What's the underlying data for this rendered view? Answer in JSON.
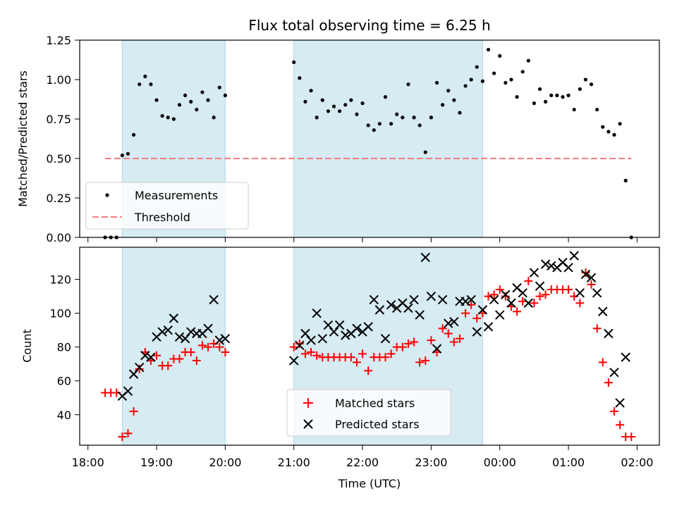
{
  "chart_data": [
    {
      "type": "scatter",
      "title": "Flux total observing time = 6.25 h",
      "xlabel": "",
      "ylabel": "Matched/Predicted stars",
      "ylim": [
        0,
        1.25
      ],
      "yticks": [
        "0.00",
        "0.25",
        "0.50",
        "0.75",
        "1.00",
        "1.25"
      ],
      "xlim": [
        "18:00",
        "02:00"
      ],
      "shaded_intervals": [
        [
          "18:30",
          "20:00"
        ],
        [
          "21:00",
          "23:45"
        ]
      ],
      "legend": {
        "placement": "lower-left",
        "entries": [
          "Measurements",
          "Threshold"
        ]
      },
      "threshold": {
        "name": "Threshold",
        "value": 0.5,
        "x_range": [
          "18:15",
          "01:55"
        ],
        "color": "#f08080"
      },
      "series": [
        {
          "name": "Measurements",
          "color": "#000000",
          "points": [
            [
              "18:15",
              0.0
            ],
            [
              "18:20",
              0.0
            ],
            [
              "18:25",
              0.0
            ],
            [
              "18:30",
              0.52
            ],
            [
              "18:35",
              0.53
            ],
            [
              "18:40",
              0.65
            ],
            [
              "18:45",
              0.97
            ],
            [
              "18:50",
              1.02
            ],
            [
              "18:55",
              0.97
            ],
            [
              "19:00",
              0.87
            ],
            [
              "19:05",
              0.77
            ],
            [
              "19:10",
              0.76
            ],
            [
              "19:15",
              0.75
            ],
            [
              "19:20",
              0.84
            ],
            [
              "19:25",
              0.9
            ],
            [
              "19:30",
              0.86
            ],
            [
              "19:35",
              0.81
            ],
            [
              "19:40",
              0.92
            ],
            [
              "19:45",
              0.87
            ],
            [
              "19:50",
              0.76
            ],
            [
              "19:55",
              0.95
            ],
            [
              "20:00",
              0.9
            ],
            [
              "21:00",
              1.11
            ],
            [
              "21:05",
              1.01
            ],
            [
              "21:10",
              0.86
            ],
            [
              "21:15",
              0.93
            ],
            [
              "21:20",
              0.76
            ],
            [
              "21:25",
              0.87
            ],
            [
              "21:30",
              0.8
            ],
            [
              "21:35",
              0.83
            ],
            [
              "21:40",
              0.8
            ],
            [
              "21:45",
              0.84
            ],
            [
              "21:50",
              0.87
            ],
            [
              "21:55",
              0.78
            ],
            [
              "22:00",
              0.85
            ],
            [
              "22:05",
              0.71
            ],
            [
              "22:10",
              0.68
            ],
            [
              "22:15",
              0.72
            ],
            [
              "22:20",
              0.89
            ],
            [
              "22:25",
              0.72
            ],
            [
              "22:30",
              0.78
            ],
            [
              "22:35",
              0.76
            ],
            [
              "22:40",
              0.97
            ],
            [
              "22:45",
              0.76
            ],
            [
              "22:50",
              0.71
            ],
            [
              "22:55",
              0.54
            ],
            [
              "23:00",
              0.76
            ],
            [
              "23:05",
              0.98
            ],
            [
              "23:10",
              0.84
            ],
            [
              "23:15",
              0.93
            ],
            [
              "23:20",
              0.87
            ],
            [
              "23:25",
              0.79
            ],
            [
              "23:30",
              0.96
            ],
            [
              "23:35",
              1.0
            ],
            [
              "23:40",
              1.08
            ],
            [
              "23:45",
              0.99
            ],
            [
              "23:50",
              1.19
            ],
            [
              "23:55",
              1.04
            ],
            [
              "00:00",
              1.15
            ],
            [
              "00:05",
              0.98
            ],
            [
              "00:10",
              1.0
            ],
            [
              "00:15",
              0.89
            ],
            [
              "00:20",
              1.05
            ],
            [
              "00:25",
              1.12
            ],
            [
              "00:30",
              0.85
            ],
            [
              "00:35",
              0.94
            ],
            [
              "00:40",
              0.86
            ],
            [
              "00:45",
              0.9
            ],
            [
              "00:50",
              0.9
            ],
            [
              "00:55",
              0.89
            ],
            [
              "01:00",
              0.9
            ],
            [
              "01:05",
              0.81
            ],
            [
              "01:10",
              0.94
            ],
            [
              "01:15",
              1.0
            ],
            [
              "01:20",
              0.97
            ],
            [
              "01:25",
              0.81
            ],
            [
              "01:30",
              0.7
            ],
            [
              "01:35",
              0.67
            ],
            [
              "01:40",
              0.65
            ],
            [
              "01:45",
              0.72
            ],
            [
              "01:50",
              0.36
            ],
            [
              "01:55",
              0.0
            ]
          ]
        }
      ]
    },
    {
      "type": "scatter",
      "title": "",
      "xlabel": "Time (UTC)",
      "ylabel": "Count",
      "ylim": [
        22,
        139
      ],
      "yticks": [
        "40",
        "60",
        "80",
        "100",
        "120"
      ],
      "xticks": [
        "18:00",
        "19:00",
        "20:00",
        "21:00",
        "22:00",
        "23:00",
        "00:00",
        "01:00",
        "02:00"
      ],
      "xlim": [
        "18:00",
        "02:00"
      ],
      "shaded_intervals": [
        [
          "18:30",
          "20:00"
        ],
        [
          "21:00",
          "23:45"
        ]
      ],
      "legend": {
        "placement": "lower-center",
        "entries": [
          "Matched stars",
          "Predicted stars"
        ]
      },
      "series": [
        {
          "name": "Matched stars",
          "color": "#ff0000",
          "marker": "plus",
          "points": [
            [
              "18:15",
              53
            ],
            [
              "18:20",
              53
            ],
            [
              "18:25",
              53
            ],
            [
              "18:30",
              27
            ],
            [
              "18:35",
              29
            ],
            [
              "18:40",
              42
            ],
            [
              "18:45",
              67
            ],
            [
              "18:50",
              77
            ],
            [
              "18:55",
              72
            ],
            [
              "19:00",
              75
            ],
            [
              "19:05",
              69
            ],
            [
              "19:10",
              69
            ],
            [
              "19:15",
              73
            ],
            [
              "19:20",
              73
            ],
            [
              "19:25",
              77
            ],
            [
              "19:30",
              77
            ],
            [
              "19:35",
              72
            ],
            [
              "19:40",
              81
            ],
            [
              "19:45",
              80
            ],
            [
              "19:50",
              82
            ],
            [
              "19:55",
              80
            ],
            [
              "20:00",
              77
            ],
            [
              "21:00",
              80
            ],
            [
              "21:05",
              82
            ],
            [
              "21:10",
              76
            ],
            [
              "21:15",
              77
            ],
            [
              "21:20",
              75
            ],
            [
              "21:25",
              74
            ],
            [
              "21:30",
              74
            ],
            [
              "21:35",
              74
            ],
            [
              "21:40",
              74
            ],
            [
              "21:45",
              74
            ],
            [
              "21:50",
              74
            ],
            [
              "21:55",
              71
            ],
            [
              "22:00",
              76
            ],
            [
              "22:05",
              66
            ],
            [
              "22:10",
              74
            ],
            [
              "22:15",
              74
            ],
            [
              "22:20",
              74
            ],
            [
              "22:25",
              76
            ],
            [
              "22:30",
              80
            ],
            [
              "22:35",
              80
            ],
            [
              "22:40",
              82
            ],
            [
              "22:45",
              83
            ],
            [
              "22:50",
              71
            ],
            [
              "22:55",
              72
            ],
            [
              "23:00",
              84
            ],
            [
              "23:05",
              77
            ],
            [
              "23:10",
              91
            ],
            [
              "23:15",
              88
            ],
            [
              "23:20",
              83
            ],
            [
              "23:25",
              85
            ],
            [
              "23:30",
              100
            ],
            [
              "23:35",
              105
            ],
            [
              "23:40",
              97
            ],
            [
              "23:45",
              100
            ],
            [
              "23:50",
              110
            ],
            [
              "23:55",
              111
            ],
            [
              "00:00",
              114
            ],
            [
              "00:05",
              110
            ],
            [
              "00:10",
              104
            ],
            [
              "00:15",
              101
            ],
            [
              "00:20",
              107
            ],
            [
              "00:25",
              119
            ],
            [
              "00:30",
              106
            ],
            [
              "00:35",
              110
            ],
            [
              "00:40",
              111
            ],
            [
              "00:45",
              114
            ],
            [
              "00:50",
              114
            ],
            [
              "00:55",
              114
            ],
            [
              "01:00",
              114
            ],
            [
              "01:05",
              110
            ],
            [
              "01:10",
              106
            ],
            [
              "01:15",
              124
            ],
            [
              "01:20",
              117
            ],
            [
              "01:25",
              91
            ],
            [
              "01:30",
              71
            ],
            [
              "01:35",
              59
            ],
            [
              "01:40",
              42
            ],
            [
              "01:45",
              34
            ],
            [
              "01:50",
              27
            ],
            [
              "01:55",
              27
            ]
          ]
        },
        {
          "name": "Predicted stars",
          "color": "#000000",
          "marker": "x",
          "points": [
            [
              "18:30",
              51
            ],
            [
              "18:35",
              54
            ],
            [
              "18:40",
              64
            ],
            [
              "18:45",
              68
            ],
            [
              "18:50",
              75
            ],
            [
              "18:55",
              74
            ],
            [
              "19:00",
              86
            ],
            [
              "19:05",
              89
            ],
            [
              "19:10",
              90
            ],
            [
              "19:15",
              97
            ],
            [
              "19:20",
              86
            ],
            [
              "19:25",
              85
            ],
            [
              "19:30",
              89
            ],
            [
              "19:35",
              88
            ],
            [
              "19:40",
              88
            ],
            [
              "19:45",
              91
            ],
            [
              "19:50",
              108
            ],
            [
              "19:55",
              84
            ],
            [
              "20:00",
              85
            ],
            [
              "21:00",
              72
            ],
            [
              "21:05",
              81
            ],
            [
              "21:10",
              88
            ],
            [
              "21:15",
              84
            ],
            [
              "21:20",
              100
            ],
            [
              "21:25",
              85
            ],
            [
              "21:30",
              93
            ],
            [
              "21:35",
              89
            ],
            [
              "21:40",
              93
            ],
            [
              "21:45",
              87
            ],
            [
              "21:50",
              88
            ],
            [
              "21:55",
              91
            ],
            [
              "22:00",
              89
            ],
            [
              "22:05",
              92
            ],
            [
              "22:10",
              108
            ],
            [
              "22:15",
              102
            ],
            [
              "22:20",
              85
            ],
            [
              "22:25",
              105
            ],
            [
              "22:30",
              103
            ],
            [
              "22:35",
              106
            ],
            [
              "22:40",
              103
            ],
            [
              "22:45",
              108
            ],
            [
              "22:50",
              99
            ],
            [
              "22:55",
              133
            ],
            [
              "23:00",
              110
            ],
            [
              "23:05",
              79
            ],
            [
              "23:10",
              108
            ],
            [
              "23:15",
              94
            ],
            [
              "23:20",
              95
            ],
            [
              "23:25",
              107
            ],
            [
              "23:30",
              107
            ],
            [
              "23:35",
              108
            ],
            [
              "23:40",
              89
            ],
            [
              "23:45",
              102
            ],
            [
              "23:50",
              92
            ],
            [
              "23:55",
              108
            ],
            [
              "00:00",
              99
            ],
            [
              "00:05",
              111
            ],
            [
              "00:10",
              106
            ],
            [
              "00:15",
              115
            ],
            [
              "00:20",
              112
            ],
            [
              "00:25",
              106
            ],
            [
              "00:30",
              124
            ],
            [
              "00:35",
              116
            ],
            [
              "00:40",
              129
            ],
            [
              "00:45",
              128
            ],
            [
              "00:50",
              127
            ],
            [
              "00:55",
              130
            ],
            [
              "01:00",
              127
            ],
            [
              "01:05",
              134
            ],
            [
              "01:10",
              112
            ],
            [
              "01:15",
              123
            ],
            [
              "01:20",
              121
            ],
            [
              "01:25",
              112
            ],
            [
              "01:30",
              101
            ],
            [
              "01:35",
              88
            ],
            [
              "01:40",
              65
            ],
            [
              "01:45",
              47
            ],
            [
              "01:50",
              74
            ]
          ]
        }
      ]
    }
  ]
}
